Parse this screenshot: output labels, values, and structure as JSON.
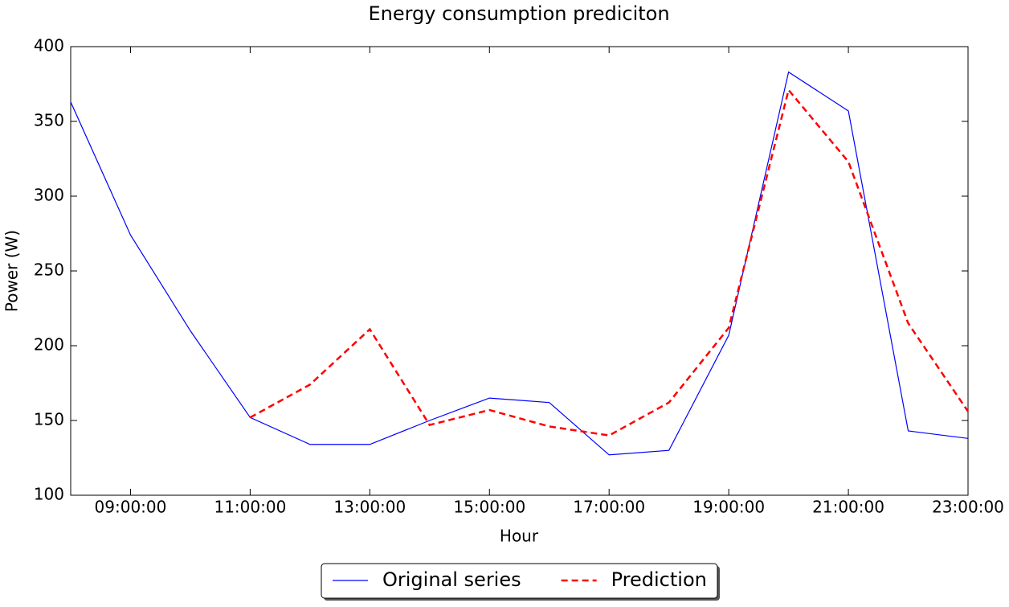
{
  "chart_data": {
    "type": "line",
    "title": "Energy consumption prediciton",
    "x_label": "Hour",
    "y_label": "Power (W)",
    "x": [
      8,
      9,
      10,
      11,
      12,
      13,
      14,
      15,
      16,
      17,
      18,
      19,
      20,
      21,
      22,
      23
    ],
    "xlim": [
      8,
      23
    ],
    "xticks": [
      {
        "value": 9,
        "label": "09:00:00"
      },
      {
        "value": 11,
        "label": "11:00:00"
      },
      {
        "value": 13,
        "label": "13:00:00"
      },
      {
        "value": 15,
        "label": "15:00:00"
      },
      {
        "value": 17,
        "label": "17:00:00"
      },
      {
        "value": 19,
        "label": "19:00:00"
      },
      {
        "value": 21,
        "label": "21:00:00"
      },
      {
        "value": 23,
        "label": "23:00:00"
      }
    ],
    "ylim": [
      100,
      400
    ],
    "yticks": [
      100,
      150,
      200,
      250,
      300,
      350,
      400
    ],
    "grid": false,
    "legend": "bottom",
    "series": [
      {
        "name": "Original series",
        "color": "#0000ff",
        "dash": false,
        "values": [
          363,
          274,
          210,
          152,
          134,
          134,
          150,
          165,
          162,
          127,
          130,
          207,
          383,
          357,
          143,
          138
        ]
      },
      {
        "name": "Prediction",
        "color": "#ff0000",
        "dash": true,
        "values": [
          null,
          null,
          null,
          152,
          174,
          211,
          147,
          157,
          146,
          140,
          162,
          212,
          371,
          323,
          215,
          156
        ]
      }
    ]
  }
}
